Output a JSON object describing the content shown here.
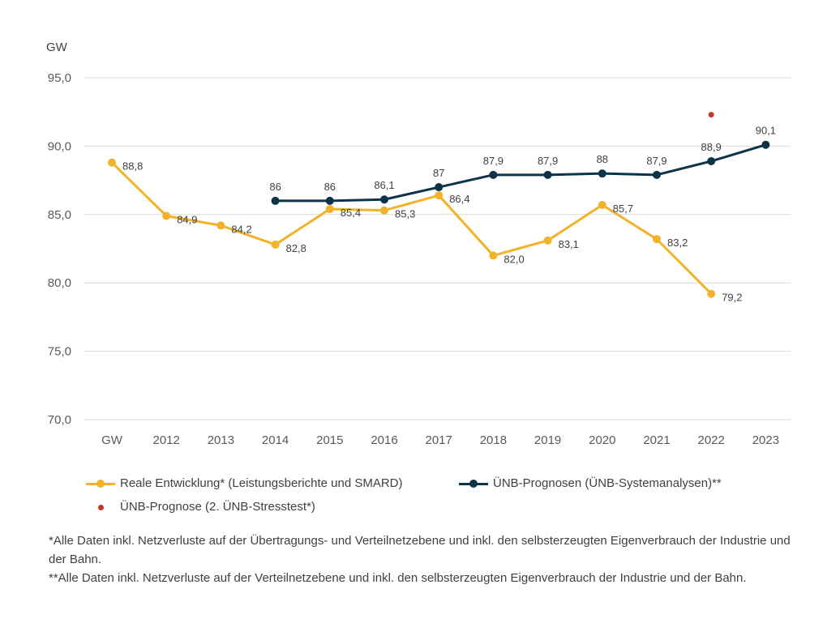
{
  "chart_data": {
    "type": "line",
    "unit_label": "GW",
    "ylim": [
      70,
      95
    ],
    "y_ticks": [
      "70,0",
      "75,0",
      "80,0",
      "85,0",
      "90,0",
      "95,0"
    ],
    "y_tick_values": [
      70,
      75,
      80,
      85,
      90,
      95
    ],
    "categories": [
      "GW",
      "2012",
      "2013",
      "2014",
      "2015",
      "2016",
      "2017",
      "2018",
      "2019",
      "2020",
      "2021",
      "2022",
      "2023"
    ],
    "grid": true,
    "legend_position": "bottom",
    "series": [
      {
        "name": "Reale Entwicklung* (Leistungsberichte und SMARD)",
        "color": "#F2B22A",
        "values": [
          88.8,
          84.9,
          84.2,
          82.8,
          85.4,
          85.3,
          86.4,
          82.0,
          83.1,
          85.7,
          83.2,
          79.2,
          null
        ],
        "labels": [
          "88,8",
          "84,9",
          "84,2",
          "82,8",
          "85,4",
          "85,3",
          "86,4",
          "82,0",
          "83,1",
          "85,7",
          "83,2",
          "79,2",
          null
        ]
      },
      {
        "name": "ÜNB-Prognosen (ÜNB-Systemanalysen)**",
        "color": "#0D3349",
        "values": [
          null,
          null,
          null,
          86,
          86,
          86.1,
          87,
          87.9,
          87.9,
          88,
          87.9,
          88.9,
          90.1
        ],
        "labels": [
          null,
          null,
          null,
          "86",
          "86",
          "86,1",
          "87",
          "87,9",
          "87,9",
          "88",
          "87,9",
          "88,9",
          "90,1"
        ]
      },
      {
        "name": "ÜNB-Prognose (2. ÜNB-Stresstest*)",
        "color": "#C0392B",
        "values": [
          null,
          null,
          null,
          null,
          null,
          null,
          null,
          null,
          null,
          null,
          null,
          92.3,
          null
        ],
        "labels": [
          null,
          null,
          null,
          null,
          null,
          null,
          null,
          null,
          null,
          null,
          null,
          null,
          null
        ]
      }
    ]
  },
  "legend": {
    "item1": "Reale Entwicklung* (Leistungsberichte und SMARD)",
    "item2": "ÜNB-Prognosen (ÜNB-Systemanalysen)**",
    "item3": "ÜNB-Prognose (2. ÜNB-Stresstest*)",
    "color1": "#F2B22A",
    "color2": "#0D3349",
    "color3": "#C0392B"
  },
  "footnotes": {
    "note1": "*Alle Daten inkl. Netzverluste auf der Übertragungs- und Verteilnetzebene und inkl. den selbsterzeugten Eigenverbrauch der Industrie und der Bahn.",
    "note2": "**Alle Daten inkl. Netzverluste auf der Verteilnetzebene und inkl. den selbsterzeugten Eigenverbrauch der Industrie und der Bahn."
  }
}
